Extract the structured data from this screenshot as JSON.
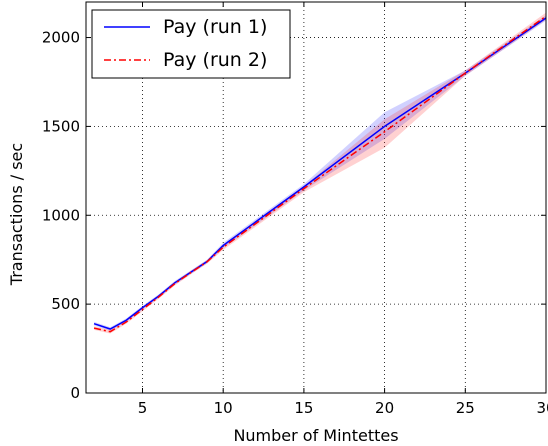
{
  "chart_data": {
    "type": "line",
    "xlabel": "Number of Mintettes",
    "ylabel": "Transactions / sec",
    "xlim": [
      1.5,
      30
    ],
    "ylim": [
      0,
      2200
    ],
    "xticks": [
      5,
      10,
      15,
      20,
      25,
      30
    ],
    "yticks": [
      0,
      500,
      1000,
      1500,
      2000
    ],
    "grid": true,
    "legend_position": "top-left",
    "series": [
      {
        "name": "Pay (run 1)",
        "color": "#0000ff",
        "linestyle": "solid",
        "x": [
          2,
          3,
          4,
          5,
          6,
          7,
          8,
          9,
          10,
          15,
          20,
          25,
          30
        ],
        "y": [
          390,
          360,
          410,
          480,
          545,
          620,
          680,
          740,
          830,
          1160,
          1500,
          1800,
          2110
        ],
        "lower": [
          380,
          350,
          400,
          470,
          535,
          610,
          670,
          730,
          815,
          1140,
          1430,
          1785,
          2095
        ],
        "upper": [
          400,
          370,
          420,
          490,
          555,
          630,
          690,
          750,
          845,
          1175,
          1580,
          1815,
          2125
        ]
      },
      {
        "name": "Pay (run 2)",
        "color": "#ff0000",
        "linestyle": "dashdot",
        "x": [
          2,
          3,
          4,
          5,
          6,
          7,
          8,
          9,
          10,
          15,
          20,
          25,
          30
        ],
        "y": [
          365,
          345,
          400,
          470,
          540,
          615,
          678,
          738,
          820,
          1150,
          1470,
          1800,
          2120
        ],
        "lower": [
          355,
          335,
          390,
          460,
          530,
          605,
          668,
          728,
          805,
          1130,
          1380,
          1785,
          2100
        ],
        "upper": [
          375,
          355,
          410,
          480,
          550,
          625,
          688,
          748,
          835,
          1165,
          1540,
          1815,
          2140
        ]
      }
    ]
  }
}
